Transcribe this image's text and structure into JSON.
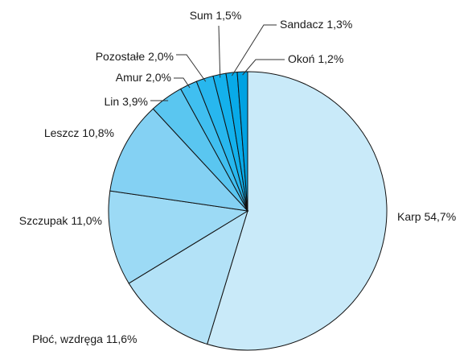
{
  "chart_data": {
    "type": "pie",
    "categories": [
      "Karp",
      "Płoć, wzdręga",
      "Szczupak",
      "Leszcz",
      "Lin",
      "Amur",
      "Pozostałe",
      "Sum",
      "Sandacz",
      "Okoń"
    ],
    "values": [
      54.7,
      11.6,
      11.0,
      10.8,
      3.9,
      2.0,
      2.0,
      1.5,
      1.3,
      1.2
    ],
    "value_labels": [
      "54,7%",
      "11,6%",
      "11,0%",
      "10,8%",
      "3,9%",
      "2,0%",
      "2,0%",
      "1,5%",
      "1,3%",
      "1,2%"
    ],
    "colors": [
      "#c9eaf9",
      "#b3e2f7",
      "#9cdaf5",
      "#84d1f3",
      "#5ac6f0",
      "#40bff0",
      "#28b7ee",
      "#14b1ec",
      "#08aae8",
      "#00a2e2"
    ]
  }
}
